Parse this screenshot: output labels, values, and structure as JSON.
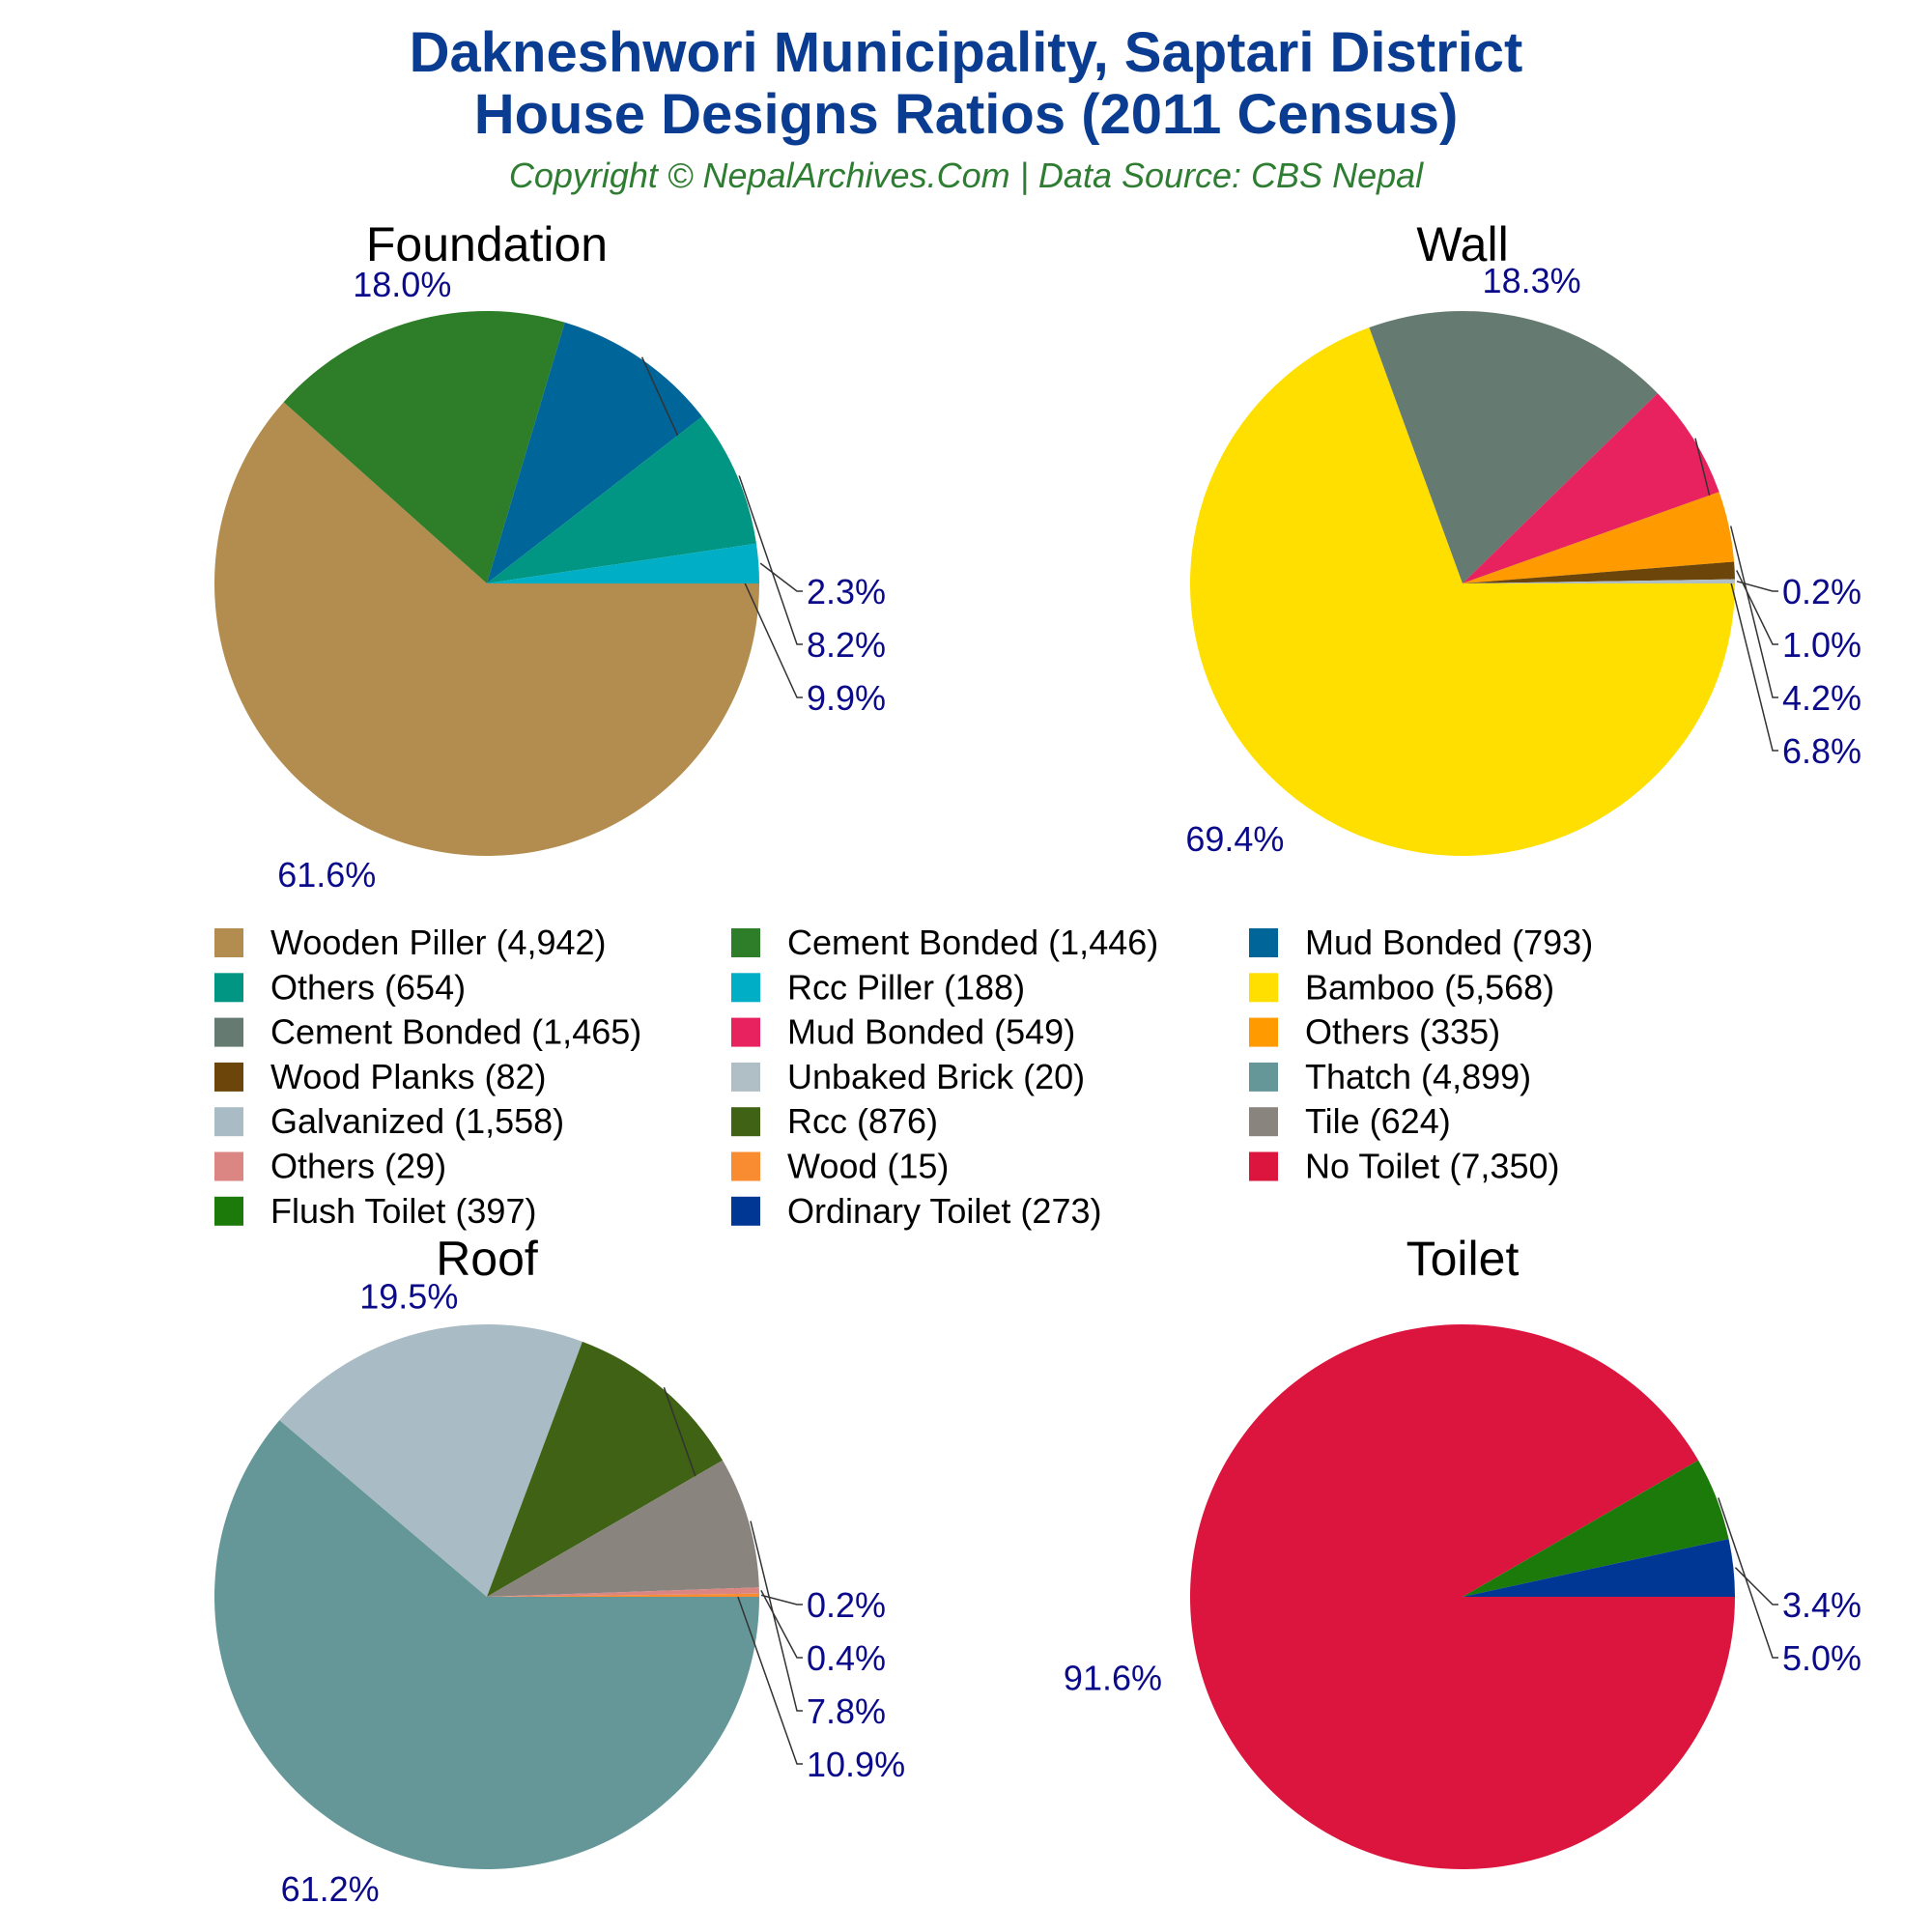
{
  "header": {
    "title_line1": "Dakneshwori Municipality, Saptari District",
    "title_line2": "House Designs Ratios (2011 Census)",
    "subtitle": "Copyright © NepalArchives.Com | Data Source: CBS Nepal"
  },
  "colors": {
    "title": "#0a3d91",
    "subtitle": "#2e7d32",
    "percent_label": "#0a0a8a"
  },
  "chart_data": [
    {
      "type": "pie",
      "title": "Foundation",
      "slices": [
        {
          "label": "Wooden Piller",
          "value": 4942,
          "percent": "61.6%",
          "color": "#b38d4f"
        },
        {
          "label": "Cement Bonded",
          "value": 1446,
          "percent": "18.0%",
          "color": "#2e7d28"
        },
        {
          "label": "Mud Bonded",
          "value": 793,
          "percent": "9.9%",
          "color": "#006599"
        },
        {
          "label": "Others",
          "value": 654,
          "percent": "8.2%",
          "color": "#009683"
        },
        {
          "label": "Rcc Piller",
          "value": 188,
          "percent": "2.3%",
          "color": "#00aec6"
        }
      ]
    },
    {
      "type": "pie",
      "title": "Wall",
      "slices": [
        {
          "label": "Bamboo",
          "value": 5568,
          "percent": "69.4%",
          "color": "#ffdf00"
        },
        {
          "label": "Cement Bonded",
          "value": 1465,
          "percent": "18.3%",
          "color": "#657a70"
        },
        {
          "label": "Mud Bonded",
          "value": 549,
          "percent": "6.8%",
          "color": "#e8225f"
        },
        {
          "label": "Others",
          "value": 335,
          "percent": "4.2%",
          "color": "#ff9b00"
        },
        {
          "label": "Wood Planks",
          "value": 82,
          "percent": "1.0%",
          "color": "#6b4509"
        },
        {
          "label": "Unbaked Brick",
          "value": 20,
          "percent": "0.2%",
          "color": "#b0bec5"
        }
      ]
    },
    {
      "type": "pie",
      "title": "Roof",
      "slices": [
        {
          "label": "Thatch",
          "value": 4899,
          "percent": "61.2%",
          "color": "#659799"
        },
        {
          "label": "Galvanized",
          "value": 1558,
          "percent": "19.5%",
          "color": "#a9bbc4"
        },
        {
          "label": "Rcc",
          "value": 876,
          "percent": "10.9%",
          "color": "#3f6214"
        },
        {
          "label": "Tile",
          "value": 624,
          "percent": "7.8%",
          "color": "#8a847f"
        },
        {
          "label": "Others",
          "value": 29,
          "percent": "0.4%",
          "color": "#dc8683"
        },
        {
          "label": "Wood",
          "value": 15,
          "percent": "0.2%",
          "color": "#f98b31"
        }
      ]
    },
    {
      "type": "pie",
      "title": "Toilet",
      "slices": [
        {
          "label": "No Toilet",
          "value": 7350,
          "percent": "91.6%",
          "color": "#dc153e"
        },
        {
          "label": "Flush Toilet",
          "value": 397,
          "percent": "5.0%",
          "color": "#1b7a0a"
        },
        {
          "label": "Ordinary Toilet",
          "value": 273,
          "percent": "3.4%",
          "color": "#003795"
        }
      ]
    }
  ],
  "legend": {
    "placement": "center",
    "items": [
      {
        "text": "Wooden Piller (4,942)",
        "color": "#b38d4f"
      },
      {
        "text": "Cement Bonded (1,446)",
        "color": "#2e7d28"
      },
      {
        "text": "Mud Bonded (793)",
        "color": "#006599"
      },
      {
        "text": "Others (654)",
        "color": "#009683"
      },
      {
        "text": "Rcc Piller (188)",
        "color": "#00aec6"
      },
      {
        "text": "Bamboo (5,568)",
        "color": "#ffdf00"
      },
      {
        "text": "Cement Bonded (1,465)",
        "color": "#657a70"
      },
      {
        "text": "Mud Bonded (549)",
        "color": "#e8225f"
      },
      {
        "text": "Others (335)",
        "color": "#ff9b00"
      },
      {
        "text": "Wood Planks (82)",
        "color": "#6b4509"
      },
      {
        "text": "Unbaked Brick (20)",
        "color": "#b0bec5"
      },
      {
        "text": "Thatch (4,899)",
        "color": "#659799"
      },
      {
        "text": "Galvanized (1,558)",
        "color": "#a9bbc4"
      },
      {
        "text": "Rcc (876)",
        "color": "#3f6214"
      },
      {
        "text": "Tile (624)",
        "color": "#8a847f"
      },
      {
        "text": "Others (29)",
        "color": "#dc8683"
      },
      {
        "text": "Wood (15)",
        "color": "#f98b31"
      },
      {
        "text": "No Toilet (7,350)",
        "color": "#dc153e"
      },
      {
        "text": "Flush Toilet (397)",
        "color": "#1b7a0a"
      },
      {
        "text": "Ordinary Toilet (273)",
        "color": "#003795"
      }
    ]
  }
}
